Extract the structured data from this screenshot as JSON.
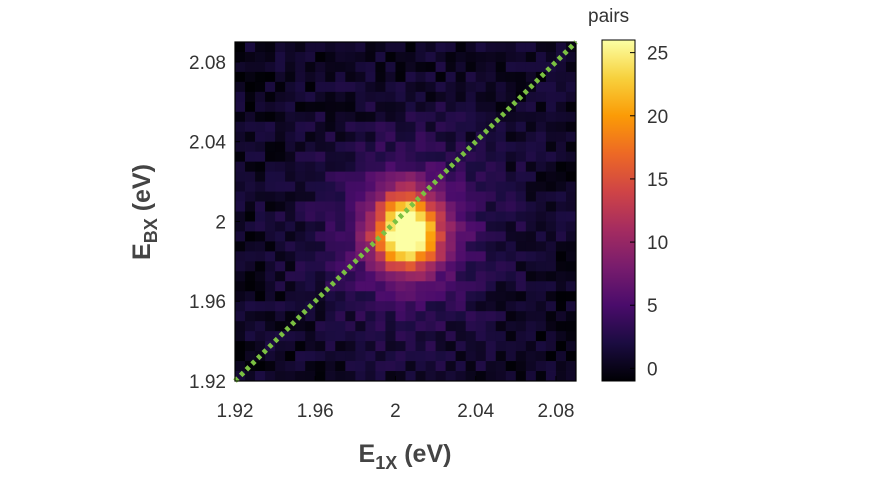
{
  "chart_data": {
    "type": "heatmap",
    "xlabel_main": "E",
    "xlabel_sub": "1X",
    "xlabel_unit": " (eV)",
    "ylabel_main": "E",
    "ylabel_sub": "BX",
    "ylabel_unit": " (eV)",
    "xlim": [
      1.92,
      2.09
    ],
    "ylim": [
      1.92,
      2.09
    ],
    "x_ticks": [
      1.92,
      1.96,
      2.0,
      2.04,
      2.08
    ],
    "x_tick_labels": [
      "1.92",
      "1.96",
      "2",
      "2.04",
      "2.08"
    ],
    "y_ticks": [
      1.92,
      1.96,
      2.0,
      2.04,
      2.08
    ],
    "y_tick_labels": [
      "1.92",
      "1.96",
      "2",
      "2.04",
      "2.08"
    ],
    "grid_bins": 34,
    "peak": {
      "x": 2.006,
      "y": 1.995,
      "value": 26
    },
    "colorbar": {
      "label": "pairs",
      "range": [
        -1,
        26
      ],
      "ticks": [
        0,
        5,
        10,
        15,
        20,
        25
      ],
      "tick_labels": [
        "0",
        "5",
        "10",
        "15",
        "20",
        "25"
      ],
      "colormap": [
        "#000004",
        "#1b0c41",
        "#4a0c6b",
        "#781c6d",
        "#a52c60",
        "#cf4446",
        "#ed6925",
        "#fb9b06",
        "#f7d13d",
        "#fcffa4"
      ]
    },
    "diagonal": {
      "from": [
        1.92,
        1.92
      ],
      "to": [
        2.09,
        2.09
      ],
      "color": "#7bc142",
      "style": "dotted"
    },
    "grid": false
  }
}
